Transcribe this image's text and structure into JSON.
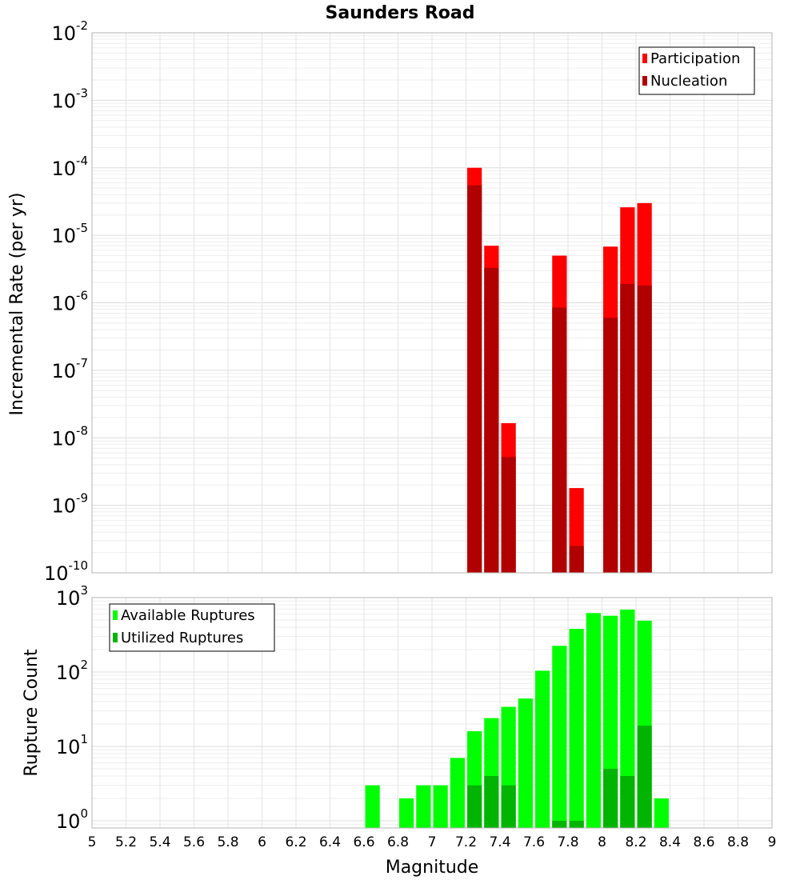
{
  "chart_data": [
    {
      "type": "bar",
      "title": "Saunders Road",
      "xlabel": "Magnitude",
      "ylabel": "Incremental Rate (per yr)",
      "yscale": "log",
      "ylim": [
        1e-10,
        0.01
      ],
      "xlim": [
        5,
        9
      ],
      "grid": true,
      "legend_position": "top-right",
      "x": [
        7.25,
        7.35,
        7.45,
        7.75,
        7.85,
        8.05,
        8.15,
        8.25
      ],
      "series": [
        {
          "name": "Participation",
          "color": "#ff0000",
          "values": [
            0.0001,
            7e-06,
            1.65e-08,
            5e-06,
            1.8e-09,
            6.8e-06,
            2.6e-05,
            3e-05
          ]
        },
        {
          "name": "Nucleation",
          "color": "#b00000",
          "values": [
            5.5e-05,
            3.3e-06,
            5.2e-09,
            8.5e-07,
            2.5e-10,
            6e-07,
            1.9e-06,
            1.8e-06
          ]
        }
      ],
      "yticks": [
        {
          "base": "10",
          "exp": "-10"
        },
        {
          "base": "10",
          "exp": "-9"
        },
        {
          "base": "10",
          "exp": "-8"
        },
        {
          "base": "10",
          "exp": "-7"
        },
        {
          "base": "10",
          "exp": "-6"
        },
        {
          "base": "10",
          "exp": "-5"
        },
        {
          "base": "10",
          "exp": "-4"
        },
        {
          "base": "10",
          "exp": "-3"
        },
        {
          "base": "10",
          "exp": "-2"
        }
      ]
    },
    {
      "type": "bar",
      "xlabel": "Magnitude",
      "ylabel": "Rupture Count",
      "yscale": "log",
      "ylim": [
        0.8,
        1000
      ],
      "xlim": [
        5,
        9
      ],
      "grid": true,
      "legend_position": "top-left",
      "x": [
        6.65,
        6.85,
        6.95,
        7.05,
        7.15,
        7.25,
        7.35,
        7.45,
        7.55,
        7.65,
        7.75,
        7.85,
        7.95,
        8.05,
        8.15,
        8.25,
        8.35
      ],
      "series": [
        {
          "name": "Available Ruptures",
          "color": "#00ff00",
          "values": [
            3,
            2,
            3,
            3,
            7,
            16,
            24,
            34,
            44,
            104,
            225,
            380,
            620,
            570,
            690,
            490,
            2
          ]
        },
        {
          "name": "Utilized Ruptures",
          "color": "#00b400",
          "values": [
            0,
            0,
            0,
            0,
            0,
            3,
            4,
            3,
            0,
            0,
            1,
            1,
            0,
            5,
            4,
            19,
            0
          ]
        }
      ],
      "yticks": [
        {
          "base": "10",
          "exp": "0"
        },
        {
          "base": "10",
          "exp": "1"
        },
        {
          "base": "10",
          "exp": "2"
        },
        {
          "base": "10",
          "exp": "3"
        }
      ],
      "xticks": [
        "5",
        "5.2",
        "5.4",
        "5.6",
        "5.8",
        "6",
        "6.2",
        "6.4",
        "6.6",
        "6.8",
        "7",
        "7.2",
        "7.4",
        "7.6",
        "7.8",
        "8",
        "8.2",
        "8.4",
        "8.6",
        "8.8",
        "9"
      ]
    }
  ]
}
